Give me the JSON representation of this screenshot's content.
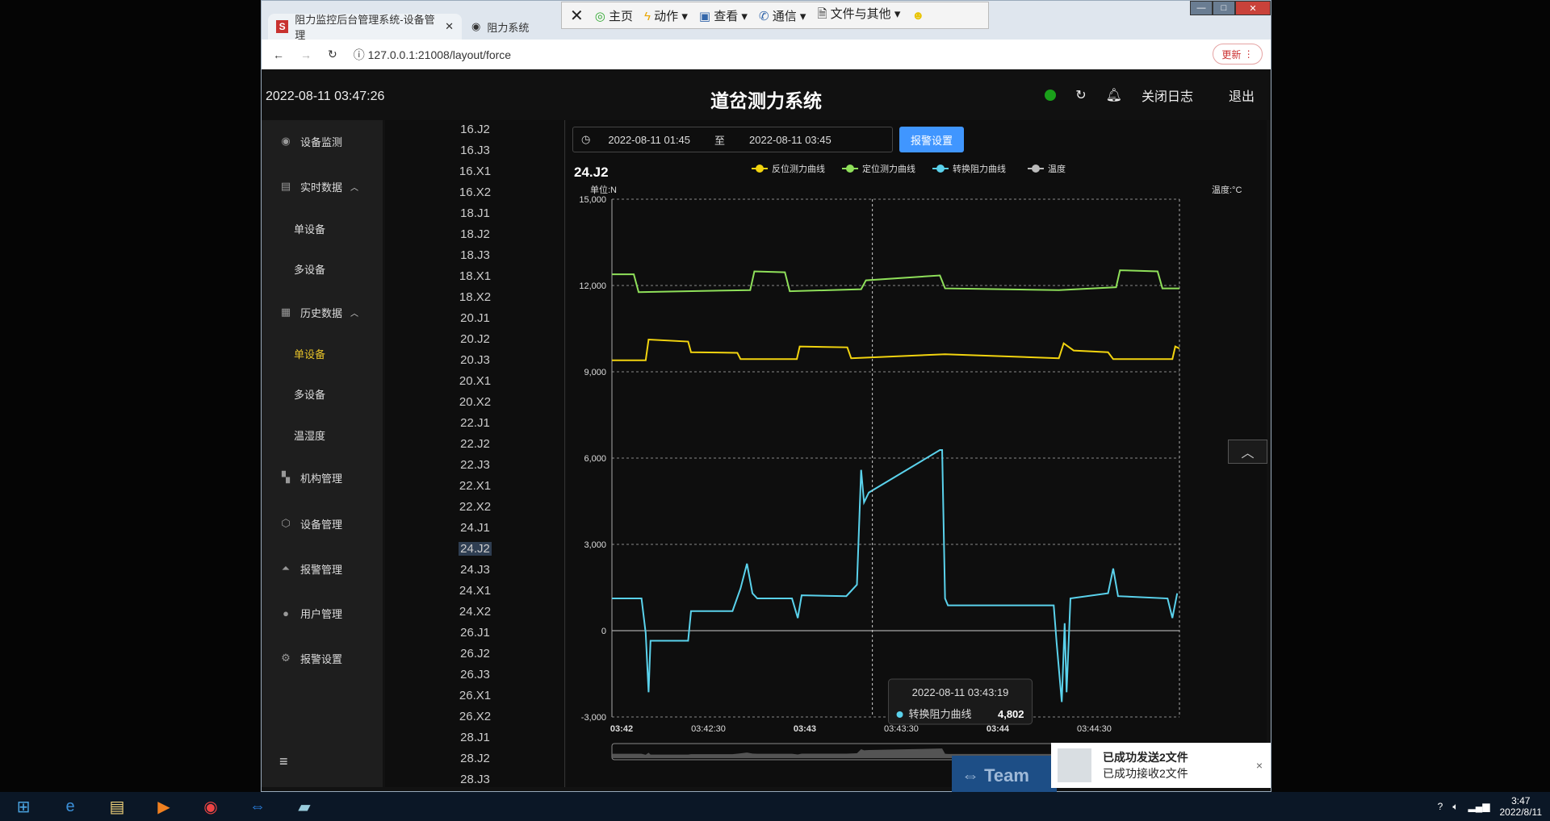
{
  "browser": {
    "tabs": [
      {
        "label": "阻力监控后台管理系统-设备管理",
        "icon": "s-icon"
      },
      {
        "label": "阻力系统",
        "icon": "globe-icon"
      }
    ],
    "url": "127.0.0.1:21008/layout/force",
    "update_label": "更新"
  },
  "remote_toolbar": {
    "items": [
      "主页",
      "动作",
      "查看",
      "通信",
      "文件与其他"
    ]
  },
  "header": {
    "datetime": "2022-08-11 03:47:26",
    "title": "道岔测力系统",
    "status_color": "#1aa01a",
    "close_log": "关闭日志",
    "logout": "退出"
  },
  "sidebar": {
    "items": [
      {
        "label": "设备监测",
        "icon": "eye-icon"
      },
      {
        "label": "实时数据",
        "icon": "document-icon",
        "expanded": true
      },
      {
        "label": "单设备",
        "sub": true
      },
      {
        "label": "多设备",
        "sub": true
      },
      {
        "label": "历史数据",
        "icon": "calendar-icon",
        "expanded": true
      },
      {
        "label": "单设备",
        "sub": true,
        "active": true
      },
      {
        "label": "多设备",
        "sub": true
      },
      {
        "label": "温湿度",
        "sub": true
      },
      {
        "label": "机构管理",
        "icon": "grid-icon"
      },
      {
        "label": "设备管理",
        "icon": "chip-icon"
      },
      {
        "label": "报警管理",
        "icon": "alarm-icon"
      },
      {
        "label": "用户管理",
        "icon": "user-icon"
      },
      {
        "label": "报警设置",
        "icon": "gear-icon"
      }
    ]
  },
  "devices": {
    "selected": "24.J2",
    "items": [
      "16.J2",
      "16.J3",
      "16.X1",
      "16.X2",
      "18.J1",
      "18.J2",
      "18.J3",
      "18.X1",
      "18.X2",
      "20.J1",
      "20.J2",
      "20.J3",
      "20.X1",
      "20.X2",
      "22.J1",
      "22.J2",
      "22.J3",
      "22.X1",
      "22.X2",
      "24.J1",
      "24.J2",
      "24.J3",
      "24.X1",
      "24.X2",
      "26.J1",
      "26.J2",
      "26.J3",
      "26.X1",
      "26.X2",
      "28.J1",
      "28.J2",
      "28.J3"
    ]
  },
  "filter": {
    "start": "2022-08-11 01:45",
    "sep": "至",
    "end": "2022-08-11 03:45",
    "alarm_button": "报警设置"
  },
  "chart_data": {
    "type": "line",
    "title": "24.J2",
    "ylabel": "单位:N",
    "y2label": "温度:°C",
    "ylim": [
      -3000,
      15000
    ],
    "yticks": [
      "15,000",
      "12,000",
      "9,000",
      "6,000",
      "3,000",
      "0",
      "-3,000"
    ],
    "xlim": [
      "03:42:00",
      "03:44:56.5"
    ],
    "xticks": [
      "03:42",
      "03:42:30",
      "03:43",
      "03:43:30",
      "03:44",
      "03:44:30"
    ],
    "grid": true,
    "legend_position": "top",
    "series": [
      {
        "name": "反位测力曲线",
        "color": "#f2d40f",
        "points": [
          [
            "03:42:00",
            9400
          ],
          [
            "03:42:10.5",
            9400
          ],
          [
            "03:42:11.4",
            10120
          ],
          [
            "03:42:23.7",
            10050
          ],
          [
            "03:42:24.6",
            9680
          ],
          [
            "03:42:39",
            9660
          ],
          [
            "03:42:40",
            9440
          ],
          [
            "03:42:57.5",
            9440
          ],
          [
            "03:42:58.4",
            9880
          ],
          [
            "03:43:13.2",
            9850
          ],
          [
            "03:43:14.4",
            9470
          ],
          [
            "03:43:43.6",
            9610
          ],
          [
            "03:44:19",
            9470
          ],
          [
            "03:44:20.5",
            9990
          ],
          [
            "03:44:23.6",
            9740
          ],
          [
            "03:44:34.3",
            9680
          ],
          [
            "03:44:35.9",
            9440
          ],
          [
            "03:44:54.3",
            9440
          ],
          [
            "03:44:55.2",
            9880
          ],
          [
            "03:44:56.5",
            9810
          ]
        ]
      },
      {
        "name": "定位测力曲线",
        "color": "#8fe05a",
        "points": [
          [
            "03:42:00",
            12390
          ],
          [
            "03:42:06.8",
            12390
          ],
          [
            "03:42:08.3",
            11770
          ],
          [
            "03:42:43",
            11840
          ],
          [
            "03:42:44.3",
            12490
          ],
          [
            "03:42:53.8",
            12460
          ],
          [
            "03:42:55.3",
            11800
          ],
          [
            "03:43:17.5",
            11870
          ],
          [
            "03:43:19",
            12180
          ],
          [
            "03:43:42",
            12350
          ],
          [
            "03:43:43.6",
            11900
          ],
          [
            "03:44:19",
            11840
          ],
          [
            "03:44:36.8",
            11940
          ],
          [
            "03:44:38",
            12530
          ],
          [
            "03:44:49.7",
            12490
          ],
          [
            "03:44:51.2",
            11900
          ],
          [
            "03:44:56.5",
            11900
          ]
        ]
      },
      {
        "name": "转换阻力曲线",
        "color": "#5ad2ec",
        "points": [
          [
            "03:42:00",
            1120
          ],
          [
            "03:42:09.2",
            1120
          ],
          [
            "03:42:10.5",
            -80
          ],
          [
            "03:42:11.4",
            -2140
          ],
          [
            "03:42:12",
            -350
          ],
          [
            "03:42:23.7",
            -350
          ],
          [
            "03:42:24.6",
            680
          ],
          [
            "03:42:37.5",
            680
          ],
          [
            "03:42:40",
            1470
          ],
          [
            "03:42:42",
            2330
          ],
          [
            "03:42:43.7",
            1300
          ],
          [
            "03:42:45.2",
            1120
          ],
          [
            "03:42:56",
            1120
          ],
          [
            "03:42:57.8",
            440
          ],
          [
            "03:42:59",
            1230
          ],
          [
            "03:43:12.9",
            1200
          ],
          [
            "03:43:16.2",
            1600
          ],
          [
            "03:43:17.5",
            5590
          ],
          [
            "03:43:18.4",
            4460
          ],
          [
            "03:43:19.9",
            4802
          ],
          [
            "03:43:42",
            6280
          ],
          [
            "03:43:42.7",
            6280
          ],
          [
            "03:43:43.6",
            1120
          ],
          [
            "03:43:44.5",
            880
          ],
          [
            "03:44:17.4",
            880
          ],
          [
            "03:44:18.3",
            -420
          ],
          [
            "03:44:19.9",
            -2480
          ],
          [
            "03:44:20.8",
            260
          ],
          [
            "03:44:21.4",
            -2140
          ],
          [
            "03:44:22.6",
            1120
          ],
          [
            "03:44:34.3",
            1300
          ],
          [
            "03:44:35.9",
            2160
          ],
          [
            "03:44:37.4",
            1200
          ],
          [
            "03:44:52.8",
            1120
          ],
          [
            "03:44:54.3",
            440
          ],
          [
            "03:44:55.8",
            1300
          ]
        ]
      },
      {
        "name": "温度",
        "color": "#bbbbbb",
        "points": []
      }
    ],
    "tooltip": {
      "time": "2022-08-11 03:43:19",
      "series": "转换阻力曲线",
      "value": "4,802"
    }
  },
  "notification": {
    "line1": "已成功发送2文件",
    "line2": "已成功接收2文件",
    "close": "×"
  },
  "teamviewer": {
    "label": "Team"
  },
  "taskbar": {
    "time": "3:47",
    "date": "2022/8/11"
  }
}
